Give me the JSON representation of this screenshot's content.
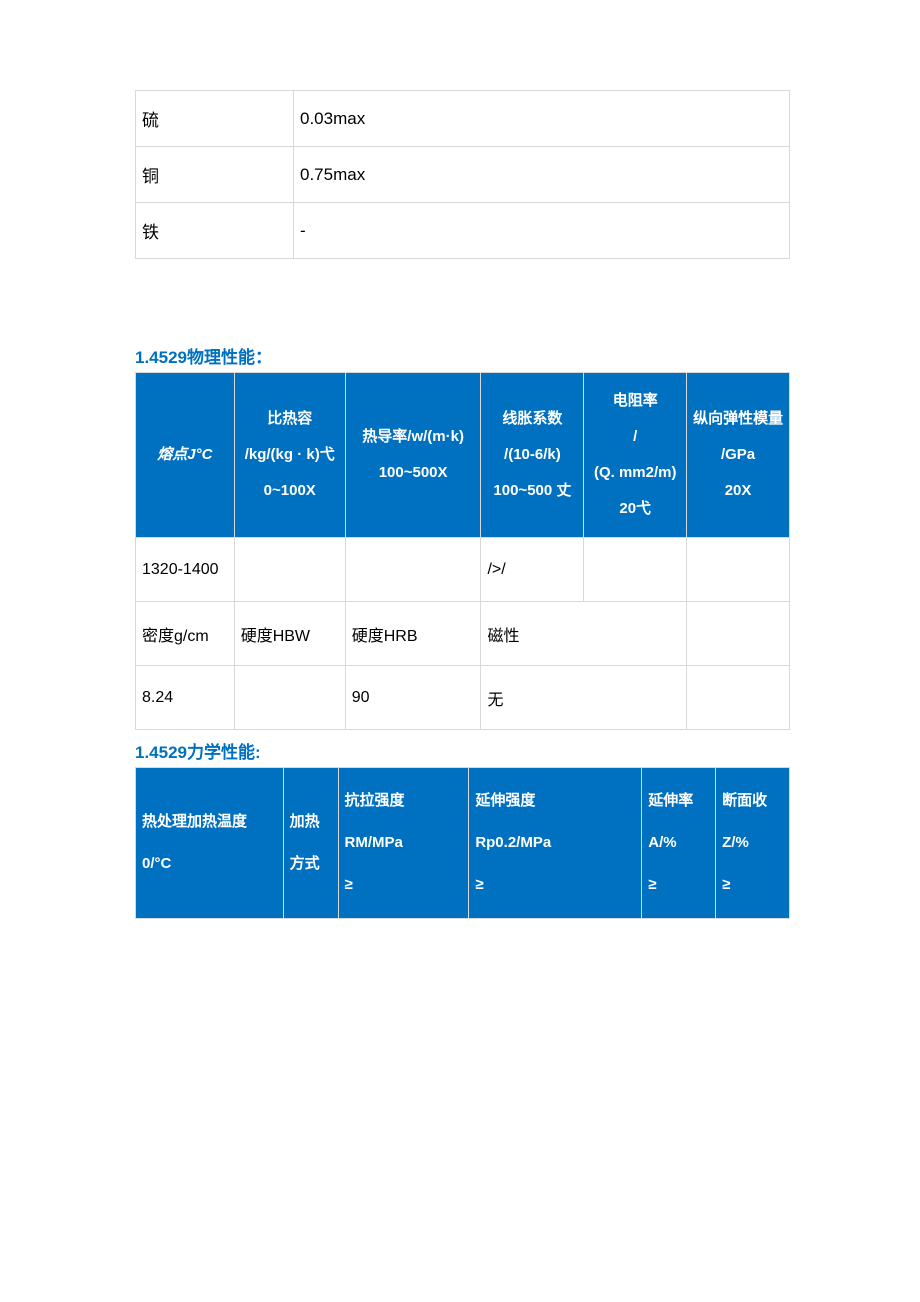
{
  "composition": {
    "rows": [
      {
        "name": "硫",
        "value": "0.03max"
      },
      {
        "name": "铜",
        "value": "0.75max"
      },
      {
        "name": "铁",
        "value": "-"
      }
    ]
  },
  "physical": {
    "heading": "1.4529物理性能：",
    "colors": {
      "header_bg": "#0070c0",
      "header_fg": "#ffffff",
      "border": "#d9d9d9",
      "heading_fg": "#0070c0"
    },
    "header": {
      "c1": "熔点J°C",
      "c2_l1": "比热容",
      "c2_l2": "/kg/(kg · k)弋",
      "c2_l3": "0~100X",
      "c3_l1": "热导率/w/(m·k)",
      "c3_l2": "100~500X",
      "c4_l1": "线胀系数",
      "c4_l2": "/(10-6/k)",
      "c4_l3": "100~500 丈",
      "c5_l1": "电阻率",
      "c5_l2": "/",
      "c5_l3": "(Q. mm2/m)",
      "c5_l4": "20弋",
      "c6_l1": "纵向弹性模量",
      "c6_l2": "/GPa",
      "c6_l3": "20X"
    },
    "rows": {
      "r1": {
        "c1": "1320-1400",
        "c2": "",
        "c3": "",
        "c4": "/>/",
        "c5": "",
        "c6": ""
      },
      "r2": {
        "c1": "密度g/cm",
        "c2": "硬度HBW",
        "c3": "硬度HRB",
        "c45": "磁性",
        "c6": ""
      },
      "r3": {
        "c1": "8.24",
        "c2": "",
        "c3": "90",
        "c45": "无",
        "c6": ""
      }
    }
  },
  "mechanical": {
    "heading": "1.4529力学性能:",
    "colors": {
      "header_bg": "#0070c0",
      "header_fg": "#ffffff",
      "border": "#d9d9d9",
      "heading_fg": "#0070c0"
    },
    "header": {
      "c1_l1": "热处理加热温度",
      "c1_l2": "0/°C",
      "c2_l1": "加热",
      "c2_l2": "方式",
      "c3_l1": "抗拉强度",
      "c3_l2": "RM/MPa",
      "c3_l3": "≥",
      "c4_l1": "延伸强度",
      "c4_l2": "Rp0.2/MPa",
      "c4_l3": "≥",
      "c5_l1": "延伸率",
      "c5_l2": "A/%",
      "c5_l3": "≥",
      "c6_l1": "断面收",
      "c6_l2": "Z/%",
      "c6_l3": "≥"
    }
  }
}
